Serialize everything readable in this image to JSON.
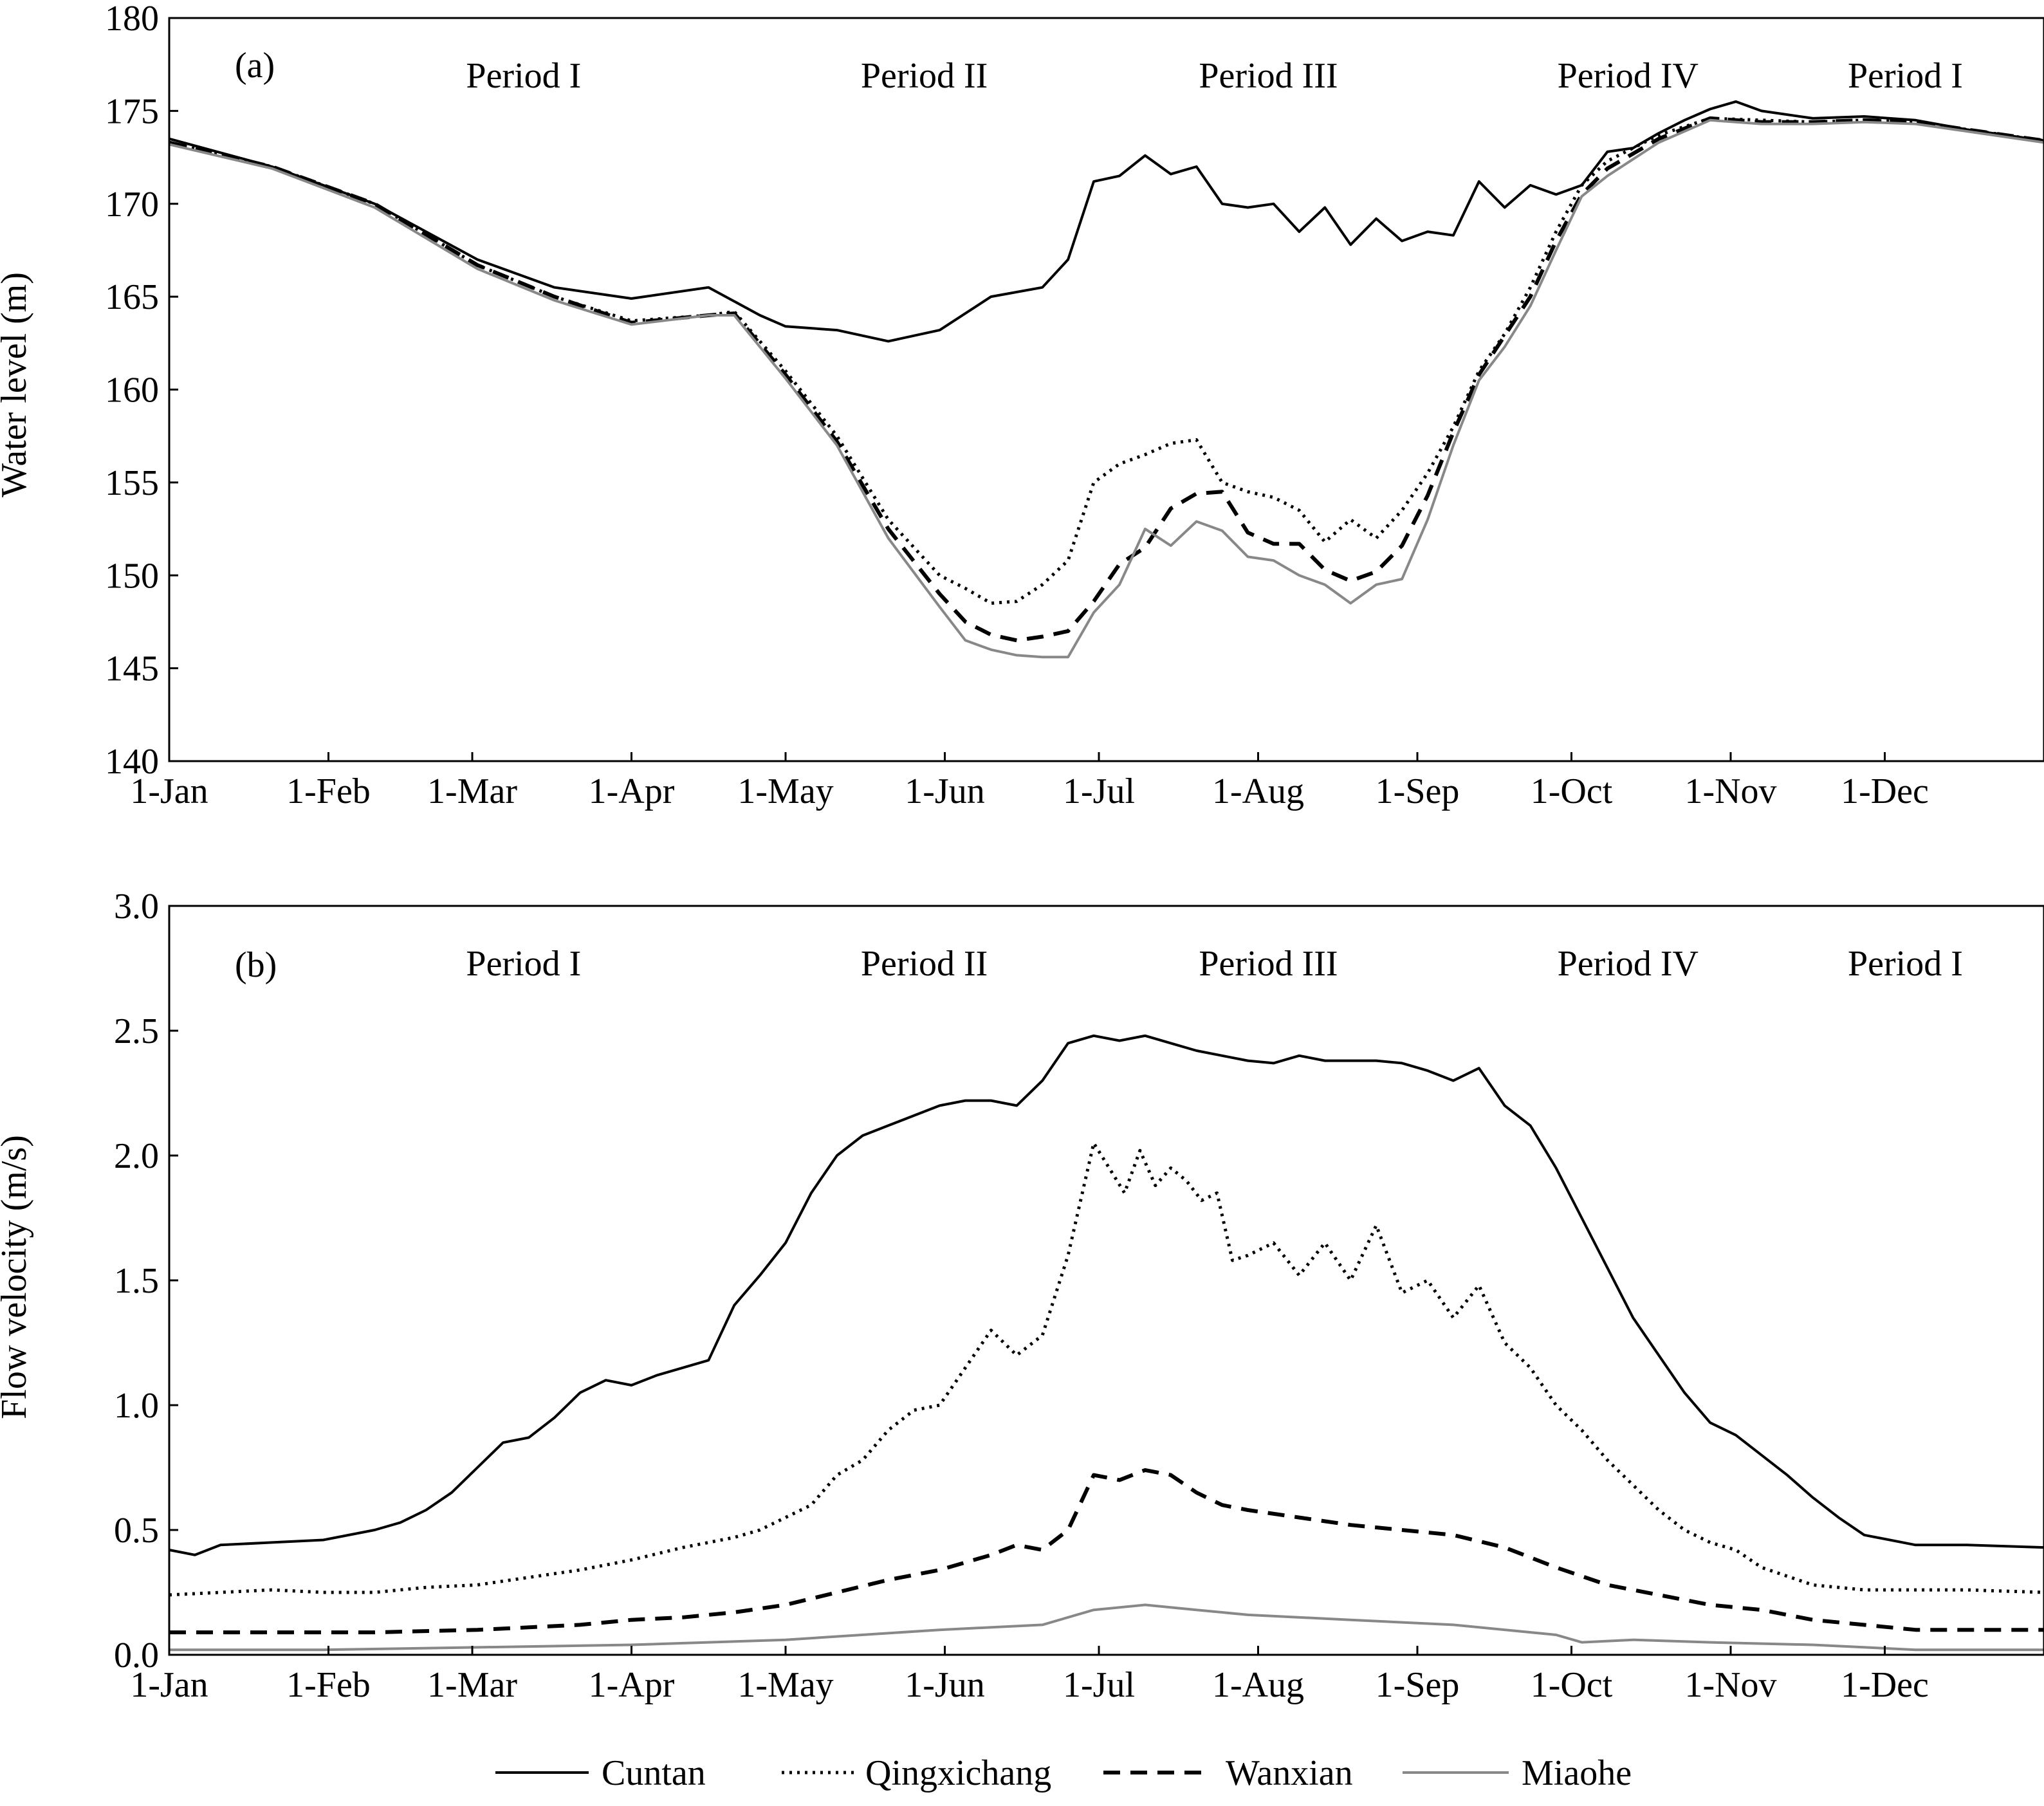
{
  "legend": [
    {
      "name": "Cuntan",
      "style": "solid",
      "color": "#000000"
    },
    {
      "name": "Qingxichang",
      "style": "dotted",
      "color": "#000000"
    },
    {
      "name": "Wanxian",
      "style": "dashed",
      "color": "#000000"
    },
    {
      "name": "Miaohe",
      "style": "solid",
      "color": "#888888"
    }
  ],
  "chart_data": [
    {
      "type": "line",
      "panel_label": "(a)",
      "title": "",
      "xlabel": "",
      "ylabel": "Water level (m)",
      "ylim": [
        140,
        180
      ],
      "yticks": [
        140,
        145,
        150,
        155,
        160,
        165,
        170,
        175,
        180
      ],
      "xlim": [
        0,
        365
      ],
      "xtick_days": [
        0,
        31,
        59,
        90,
        120,
        151,
        181,
        212,
        243,
        273,
        304,
        334
      ],
      "xtick_labels": [
        "1-Jan",
        "1-Feb",
        "1-Mar",
        "1-Apr",
        "1-May",
        "1-Jun",
        "1-Jul",
        "1-Aug",
        "1-Sep",
        "1-Oct",
        "1-Nov",
        "1-Dec"
      ],
      "period_labels": [
        {
          "text": "Period I",
          "day": 69
        },
        {
          "text": "Period II",
          "day": 147
        },
        {
          "text": "Period III",
          "day": 214
        },
        {
          "text": "Period IV",
          "day": 284
        },
        {
          "text": "Period I",
          "day": 338
        }
      ],
      "series": [
        {
          "name": "Cuntan",
          "x": [
            0,
            20,
            40,
            60,
            75,
            90,
            105,
            115,
            120,
            130,
            140,
            150,
            160,
            170,
            175,
            180,
            185,
            190,
            195,
            200,
            205,
            210,
            215,
            220,
            225,
            230,
            235,
            240,
            245,
            250,
            255,
            260,
            265,
            270,
            275,
            280,
            285,
            290,
            295,
            300,
            305,
            310,
            320,
            330,
            340,
            350,
            365
          ],
          "y": [
            173.5,
            172,
            170,
            167,
            165.5,
            164.9,
            165.5,
            164,
            163.4,
            163.2,
            162.6,
            163.2,
            165,
            165.5,
            167,
            171.2,
            171.5,
            172.6,
            171.6,
            172,
            170,
            169.8,
            170,
            168.5,
            169.8,
            167.8,
            169.2,
            168,
            168.5,
            168.3,
            171.2,
            169.8,
            171,
            170.5,
            171,
            172.8,
            173,
            173.8,
            174.5,
            175.1,
            175.5,
            175,
            174.6,
            174.7,
            174.5,
            174,
            173.4
          ]
        },
        {
          "name": "Qingxichang",
          "x": [
            0,
            20,
            40,
            60,
            75,
            90,
            105,
            110,
            120,
            130,
            140,
            150,
            155,
            160,
            165,
            170,
            175,
            180,
            185,
            190,
            195,
            200,
            205,
            210,
            215,
            220,
            225,
            230,
            235,
            240,
            245,
            250,
            255,
            260,
            265,
            270,
            275,
            280,
            290,
            300,
            310,
            320,
            330,
            340,
            350,
            365
          ],
          "y": [
            173.3,
            172,
            170,
            166.7,
            165,
            163.7,
            164,
            164.2,
            161,
            157.5,
            153,
            150,
            149.3,
            148.5,
            148.6,
            149.5,
            150.8,
            155,
            156,
            156.5,
            157.1,
            157.3,
            155,
            154.5,
            154.2,
            153.5,
            151.8,
            153,
            152,
            153.5,
            155.5,
            158,
            161,
            163,
            165.5,
            168.5,
            171,
            172.3,
            173.7,
            174.6,
            174.5,
            174.4,
            174.5,
            174.4,
            174,
            173.4
          ]
        },
        {
          "name": "Wanxian",
          "x": [
            0,
            20,
            40,
            60,
            75,
            90,
            105,
            110,
            120,
            130,
            140,
            150,
            155,
            160,
            165,
            170,
            175,
            180,
            185,
            190,
            195,
            200,
            205,
            210,
            215,
            220,
            225,
            230,
            235,
            240,
            245,
            250,
            255,
            260,
            265,
            270,
            275,
            280,
            290,
            300,
            310,
            320,
            330,
            340,
            350,
            365
          ],
          "y": [
            173.3,
            172,
            170,
            166.7,
            165,
            163.6,
            164,
            164.1,
            160.8,
            157.2,
            152.5,
            149,
            147.5,
            146.8,
            146.5,
            146.7,
            147,
            148.6,
            150.6,
            151.5,
            153.6,
            154.4,
            154.5,
            152.3,
            151.7,
            151.7,
            150.3,
            149.7,
            150.2,
            151.6,
            154.3,
            157.7,
            160.8,
            162.9,
            165,
            168,
            170.5,
            171.9,
            173.5,
            174.6,
            174.4,
            174.4,
            174.5,
            174.4,
            174,
            173.4
          ]
        },
        {
          "name": "Miaohe",
          "x": [
            0,
            20,
            40,
            60,
            75,
            90,
            105,
            110,
            120,
            130,
            140,
            150,
            155,
            160,
            165,
            170,
            175,
            180,
            185,
            190,
            195,
            200,
            205,
            210,
            215,
            220,
            225,
            230,
            235,
            240,
            245,
            250,
            255,
            260,
            265,
            270,
            275,
            280,
            290,
            300,
            310,
            320,
            330,
            340,
            350,
            365
          ],
          "y": [
            173.2,
            171.9,
            169.8,
            166.5,
            164.8,
            163.5,
            164,
            164,
            160.6,
            157,
            152,
            148.3,
            146.5,
            146,
            145.7,
            145.6,
            145.6,
            148,
            149.5,
            152.5,
            151.6,
            152.9,
            152.4,
            151,
            150.8,
            150,
            149.5,
            148.5,
            149.5,
            149.8,
            153,
            157,
            160.5,
            162.3,
            164.5,
            167.5,
            170.4,
            171.5,
            173.3,
            174.5,
            174.3,
            174.3,
            174.4,
            174.3,
            173.9,
            173.3
          ]
        }
      ]
    },
    {
      "type": "line",
      "panel_label": "(b)",
      "title": "",
      "xlabel": "",
      "ylabel": "Flow velocity (m/s)",
      "ylim": [
        0,
        3
      ],
      "yticks": [
        0.0,
        0.5,
        1.0,
        1.5,
        2.0,
        2.5,
        3.0
      ],
      "ytick_labels": [
        "0.0",
        "0.5",
        "1.0",
        "1.5",
        "2.0",
        "2.5",
        "3.0"
      ],
      "xlim": [
        0,
        365
      ],
      "xtick_days": [
        0,
        31,
        59,
        90,
        120,
        151,
        181,
        212,
        243,
        273,
        304,
        334
      ],
      "xtick_labels": [
        "1-Jan",
        "1-Feb",
        "1-Mar",
        "1-Apr",
        "1-May",
        "1-Jun",
        "1-Jul",
        "1-Aug",
        "1-Sep",
        "1-Oct",
        "1-Nov",
        "1-Dec"
      ],
      "period_labels": [
        {
          "text": "Period I",
          "day": 69
        },
        {
          "text": "Period II",
          "day": 147
        },
        {
          "text": "Period III",
          "day": 214
        },
        {
          "text": "Period IV",
          "day": 284
        },
        {
          "text": "Period I",
          "day": 338
        }
      ],
      "series": [
        {
          "name": "Cuntan",
          "x": [
            0,
            5,
            10,
            20,
            30,
            40,
            45,
            50,
            55,
            60,
            65,
            70,
            75,
            80,
            85,
            90,
            95,
            100,
            105,
            110,
            115,
            120,
            125,
            130,
            135,
            140,
            145,
            150,
            155,
            160,
            165,
            170,
            175,
            180,
            185,
            190,
            195,
            200,
            205,
            210,
            215,
            220,
            225,
            230,
            235,
            240,
            245,
            250,
            255,
            260,
            265,
            270,
            275,
            280,
            285,
            290,
            295,
            300,
            305,
            310,
            315,
            320,
            325,
            330,
            340,
            350,
            365
          ],
          "y": [
            0.42,
            0.4,
            0.44,
            0.45,
            0.46,
            0.5,
            0.53,
            0.58,
            0.65,
            0.75,
            0.85,
            0.87,
            0.95,
            1.05,
            1.1,
            1.08,
            1.12,
            1.15,
            1.18,
            1.4,
            1.52,
            1.65,
            1.85,
            2.0,
            2.08,
            2.12,
            2.16,
            2.2,
            2.22,
            2.22,
            2.2,
            2.3,
            2.45,
            2.48,
            2.46,
            2.48,
            2.45,
            2.42,
            2.4,
            2.38,
            2.37,
            2.4,
            2.38,
            2.38,
            2.38,
            2.37,
            2.34,
            2.3,
            2.35,
            2.2,
            2.12,
            1.95,
            1.75,
            1.55,
            1.35,
            1.2,
            1.05,
            0.93,
            0.88,
            0.8,
            0.72,
            0.63,
            0.55,
            0.48,
            0.44,
            0.44,
            0.43
          ]
        },
        {
          "name": "Qingxichang",
          "x": [
            0,
            10,
            20,
            30,
            40,
            50,
            60,
            70,
            80,
            90,
            100,
            110,
            115,
            120,
            125,
            130,
            135,
            140,
            145,
            150,
            155,
            160,
            165,
            170,
            175,
            180,
            183,
            186,
            189,
            192,
            195,
            198,
            201,
            204,
            207,
            210,
            215,
            220,
            225,
            230,
            235,
            240,
            245,
            250,
            255,
            260,
            265,
            270,
            275,
            280,
            285,
            290,
            295,
            300,
            305,
            310,
            320,
            330,
            340,
            350,
            365
          ],
          "y": [
            0.24,
            0.25,
            0.26,
            0.25,
            0.25,
            0.27,
            0.28,
            0.31,
            0.34,
            0.38,
            0.43,
            0.47,
            0.5,
            0.55,
            0.6,
            0.72,
            0.78,
            0.9,
            0.98,
            1.0,
            1.15,
            1.3,
            1.2,
            1.28,
            1.6,
            2.05,
            1.95,
            1.85,
            2.02,
            1.88,
            1.95,
            1.9,
            1.82,
            1.85,
            1.58,
            1.6,
            1.65,
            1.52,
            1.65,
            1.5,
            1.72,
            1.45,
            1.5,
            1.35,
            1.48,
            1.25,
            1.15,
            1.0,
            0.9,
            0.78,
            0.68,
            0.58,
            0.5,
            0.45,
            0.42,
            0.35,
            0.28,
            0.26,
            0.26,
            0.26,
            0.25
          ]
        },
        {
          "name": "Wanxian",
          "x": [
            0,
            20,
            40,
            60,
            80,
            90,
            100,
            110,
            120,
            130,
            140,
            150,
            160,
            165,
            170,
            175,
            180,
            185,
            190,
            195,
            200,
            205,
            210,
            220,
            230,
            240,
            250,
            260,
            270,
            280,
            290,
            300,
            310,
            320,
            340,
            365
          ],
          "y": [
            0.09,
            0.09,
            0.09,
            0.1,
            0.12,
            0.14,
            0.15,
            0.17,
            0.2,
            0.25,
            0.3,
            0.34,
            0.4,
            0.44,
            0.42,
            0.5,
            0.72,
            0.7,
            0.74,
            0.72,
            0.65,
            0.6,
            0.58,
            0.55,
            0.52,
            0.5,
            0.48,
            0.43,
            0.35,
            0.28,
            0.24,
            0.2,
            0.18,
            0.14,
            0.1,
            0.1
          ]
        },
        {
          "name": "Miaohe",
          "x": [
            0,
            30,
            60,
            90,
            120,
            150,
            170,
            180,
            190,
            200,
            210,
            230,
            250,
            270,
            275,
            285,
            300,
            320,
            340,
            365
          ],
          "y": [
            0.02,
            0.02,
            0.03,
            0.04,
            0.06,
            0.1,
            0.12,
            0.18,
            0.2,
            0.18,
            0.16,
            0.14,
            0.12,
            0.08,
            0.05,
            0.06,
            0.05,
            0.04,
            0.02,
            0.02
          ]
        }
      ]
    }
  ]
}
